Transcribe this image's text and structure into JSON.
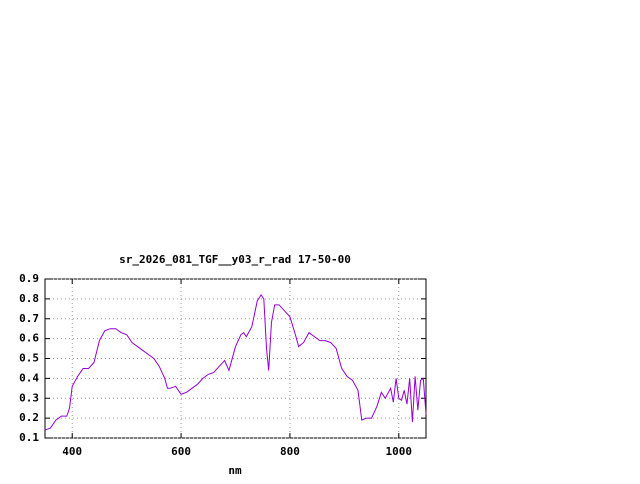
{
  "chart_data": {
    "type": "line",
    "title": "sr_2026_081_TGF__y03_r_rad 17-50-00",
    "x_label": "nm",
    "x": [
      350,
      360,
      370,
      380,
      390,
      395,
      400,
      410,
      420,
      430,
      440,
      450,
      460,
      470,
      480,
      490,
      500,
      510,
      520,
      530,
      540,
      550,
      560,
      570,
      575,
      580,
      590,
      600,
      610,
      620,
      630,
      640,
      650,
      660,
      670,
      680,
      688,
      700,
      710,
      715,
      720,
      730,
      740,
      747,
      752,
      757,
      761,
      766,
      772,
      780,
      790,
      800,
      810,
      816,
      825,
      835,
      845,
      855,
      865,
      875,
      885,
      895,
      905,
      915,
      925,
      932,
      940,
      950,
      960,
      968,
      975,
      985,
      990,
      995,
      1000,
      1005,
      1010,
      1015,
      1020,
      1025,
      1030,
      1035,
      1040,
      1045,
      1050
    ],
    "series": [
      {
        "color": "#9400d3",
        "values": [
          0.14,
          0.15,
          0.19,
          0.21,
          0.21,
          0.25,
          0.36,
          0.41,
          0.45,
          0.45,
          0.48,
          0.59,
          0.64,
          0.65,
          0.65,
          0.63,
          0.62,
          0.58,
          0.56,
          0.54,
          0.52,
          0.5,
          0.46,
          0.4,
          0.35,
          0.35,
          0.36,
          0.32,
          0.33,
          0.35,
          0.37,
          0.4,
          0.42,
          0.43,
          0.46,
          0.49,
          0.44,
          0.56,
          0.62,
          0.63,
          0.61,
          0.66,
          0.79,
          0.82,
          0.8,
          0.55,
          0.44,
          0.68,
          0.77,
          0.77,
          0.74,
          0.71,
          0.62,
          0.56,
          0.58,
          0.63,
          0.61,
          0.59,
          0.59,
          0.58,
          0.55,
          0.45,
          0.41,
          0.39,
          0.34,
          0.19,
          0.2,
          0.2,
          0.26,
          0.33,
          0.3,
          0.35,
          0.28,
          0.4,
          0.3,
          0.29,
          0.34,
          0.27,
          0.4,
          0.18,
          0.41,
          0.24,
          0.39,
          0.4,
          0.22
        ]
      }
    ],
    "xlim": [
      350,
      1050
    ],
    "xticks": [
      400,
      600,
      800,
      1000
    ],
    "ylim": [
      0.1,
      0.9
    ],
    "yticks": [
      0.1,
      0.2,
      0.3,
      0.4,
      0.5,
      0.6,
      0.7,
      0.8,
      0.9
    ],
    "grid": true
  }
}
